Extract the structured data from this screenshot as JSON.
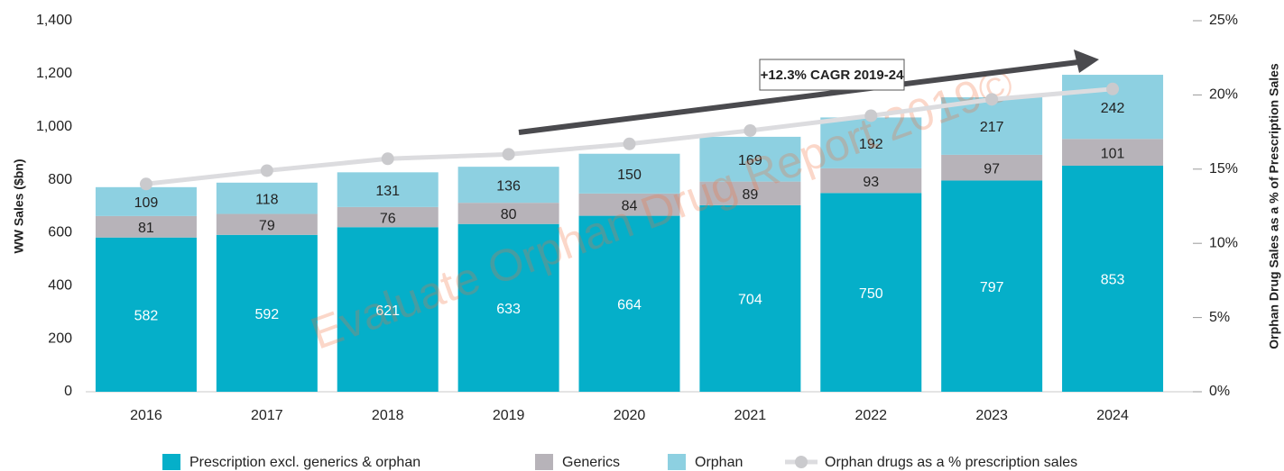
{
  "chart_data": {
    "type": "bar",
    "categories": [
      "2016",
      "2017",
      "2018",
      "2019",
      "2020",
      "2021",
      "2022",
      "2023",
      "2024"
    ],
    "series": [
      {
        "name": "Prescription excl. generics & orphan",
        "color": "#05afc9",
        "axis": "y",
        "values": [
          582,
          592,
          621,
          633,
          664,
          704,
          750,
          797,
          853
        ]
      },
      {
        "name": "Generics",
        "color": "#b7b3b9",
        "axis": "y",
        "values": [
          81,
          79,
          76,
          80,
          84,
          89,
          93,
          97,
          101
        ]
      },
      {
        "name": "Orphan",
        "color": "#8dd0e1",
        "axis": "y",
        "values": [
          109,
          118,
          131,
          136,
          150,
          169,
          192,
          217,
          242
        ]
      },
      {
        "name": "Orphan drugs as a % prescription sales",
        "type": "line",
        "color": "#dcdcdf",
        "axis": "y2",
        "values": [
          14.0,
          14.9,
          15.7,
          16.0,
          16.7,
          17.6,
          18.6,
          19.7,
          20.4
        ]
      }
    ],
    "ylabel": "WW Sales ($bn)",
    "y2label": "Orphan Drug Sales as a % of Prescription Sales",
    "ylim": [
      0,
      1400
    ],
    "yticks": [
      0,
      200,
      400,
      600,
      800,
      {
        "value": 1000,
        "label": "1,000"
      },
      {
        "value": 1200,
        "label": "1,200"
      },
      {
        "value": 1400,
        "label": "1,400"
      }
    ],
    "y2lim": [
      0,
      25
    ],
    "y2ticks": [
      {
        "value": 0,
        "label": "0%"
      },
      {
        "value": 5,
        "label": "5%"
      },
      {
        "value": 10,
        "label": "10%"
      },
      {
        "value": 15,
        "label": "15%"
      },
      {
        "value": 20,
        "label": "20%"
      },
      {
        "value": 25,
        "label": "25%"
      }
    ],
    "annotation": "+12.3% CAGR 2019-24",
    "watermark": "Evaluate Orphan Drug Report 2019©",
    "grid": false,
    "legend": "bottom"
  }
}
